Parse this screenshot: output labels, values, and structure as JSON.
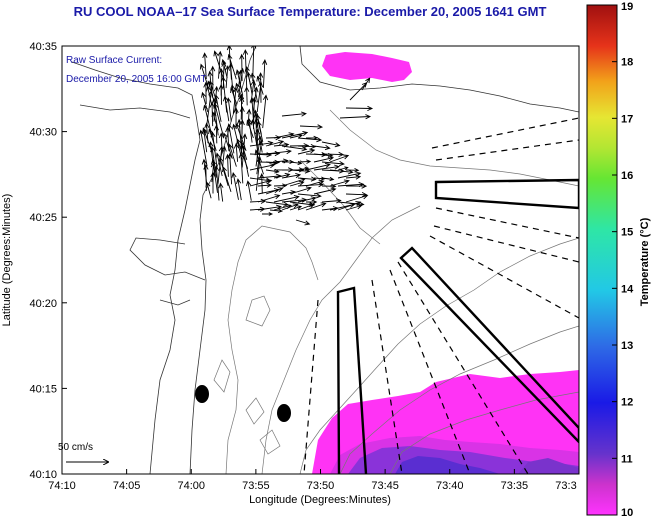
{
  "chart_data": {
    "type": "heatmap",
    "title": "RU COOL   NOAA–17  Sea Surface Temperature:  December 20, 2005 1641 GMT",
    "xlabel": "Longitude (Degrees:Minutes)",
    "ylabel": "Latitude (Degrees:Minutes)",
    "x_ticks": [
      "74:10",
      "74:05",
      "74:00",
      "73:55",
      "73:50",
      "73:45",
      "73:40",
      "73:35",
      "73:3"
    ],
    "y_ticks": [
      "40:35",
      "40:30",
      "40:25",
      "40:20",
      "40:15",
      "40:10"
    ],
    "xlim": [
      "74:10",
      "73:30"
    ],
    "ylim": [
      "40:10",
      "40:35"
    ],
    "colorbar": {
      "label": "Temperature (°C)",
      "ticks": [
        "19",
        "18",
        "17",
        "16",
        "15",
        "14",
        "13",
        "12",
        "11",
        "10"
      ],
      "min": 10,
      "max": 19
    },
    "annotations": {
      "legend_line1": "Raw Surface Current:",
      "legend_line2": "December 20, 2005 16:00 GMT",
      "scale_label": "50 cm/s"
    },
    "sst_regions": [
      {
        "name": "north-patch",
        "temp_c": 10.1
      },
      {
        "name": "southeast-patch",
        "temp_c": 10.2
      },
      {
        "name": "southeast-cold-core",
        "temp_c": 11.0
      }
    ],
    "current_field": {
      "description": "raw surface current vectors off the coast",
      "scale_cm_s": 50
    }
  }
}
